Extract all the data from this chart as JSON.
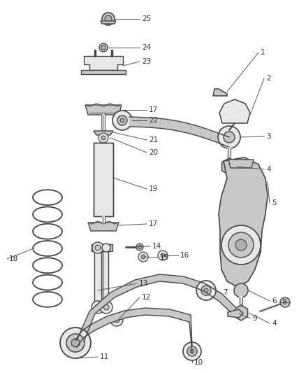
{
  "background_color": "#ffffff",
  "line_color": "#444444",
  "text_color": "#333333",
  "figsize": [
    4.38,
    5.33
  ],
  "dpi": 100
}
